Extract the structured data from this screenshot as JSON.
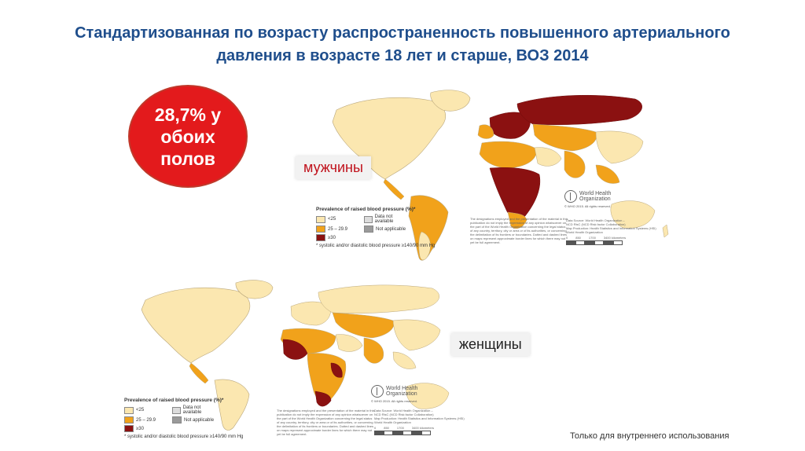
{
  "title": "Стандартизованная по возрасту распространенность повышенного артериального давления в возрасте 18 лет и старше, ВОЗ 2014",
  "badge": {
    "line1": "28,7% у",
    "line2": "обоих",
    "line3": "полов"
  },
  "male_label": "мужчины",
  "female_label": "женщины",
  "footer": "Только для внутреннего использования",
  "legend": {
    "title": "Prevalence of raised blood pressure (%)*",
    "items": [
      "<25",
      "Data not available",
      "25 – 29.9",
      "Not applicable",
      "≥30"
    ],
    "note": "* systolic and/or diastolic blood pressure ≥140/90 mm Hg"
  },
  "who": {
    "name_line1": "World Health",
    "name_line2": "Organization",
    "copyright": "© WHO 2015. All rights reserved."
  },
  "source": {
    "line1": "Data Source: World Health Organization –",
    "line2": "NCD RisC (NCD Risk factor Collaboration)",
    "line3": "Map Production: Health Statistics and Information Systems (HSI)",
    "line4": "World Health Organization"
  },
  "disclaimer": "The designations employed and the presentation of the material in this publication do not imply the expression of any opinion whatsoever on the part of the World Health Organization concerning the legal status of any country, territory, city or area or of its authorities, or concerning the delimitation of its frontiers or boundaries. Dotted and dashed lines on maps represent approximate border lines for which there may not yet be full agreement.",
  "scale": {
    "t0": "0",
    "t1": "850",
    "t2": "1700",
    "t3": "3400 kilometers"
  },
  "colors": {
    "low": "#fbe7b0",
    "mid": "#f1a21b",
    "high": "#8b1111",
    "na": "#dcdcdc",
    "notapp": "#9a9a9a",
    "badge": "#e31a1c"
  }
}
